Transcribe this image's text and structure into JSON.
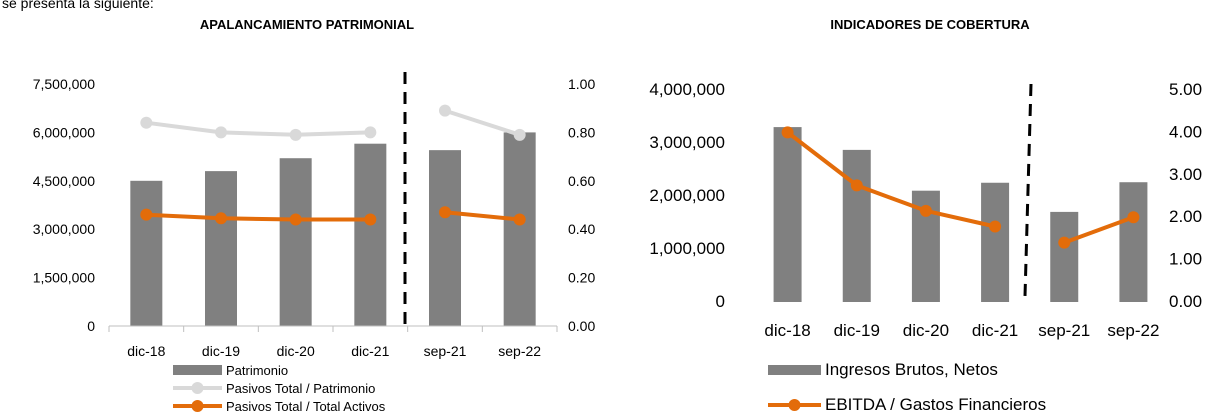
{
  "page_caption": "se presenta la siguiente:",
  "chart_data": [
    {
      "type": "bar",
      "title": "APALANCAMIENTO PATRIMONIAL",
      "categories": [
        "dic-18",
        "dic-19",
        "dic-20",
        "dic-21",
        "sep-21",
        "sep-22"
      ],
      "y_left": {
        "ticks": [
          "0",
          "1,500,000",
          "3,000,000",
          "4,500,000",
          "6,000,000",
          "7,500,000"
        ],
        "range": [
          0,
          7500000
        ]
      },
      "y_right": {
        "ticks": [
          "0.00",
          "0.20",
          "0.40",
          "0.60",
          "0.80",
          "1.00"
        ],
        "range": [
          0,
          1
        ]
      },
      "series": [
        {
          "name": "Patrimonio",
          "kind": "bar",
          "axis": "left",
          "color": "#808080",
          "values": [
            4500000,
            4800000,
            5200000,
            5650000,
            5450000,
            6000000
          ]
        },
        {
          "name": "Pasivos Total / Patrimonio",
          "kind": "line",
          "axis": "right",
          "color": "#d9d9d9",
          "values": [
            0.84,
            0.8,
            0.79,
            0.8,
            0.89,
            0.79
          ]
        },
        {
          "name": "Pasivos Total / Total Activos",
          "kind": "line",
          "axis": "right",
          "color": "#e36c0a",
          "values": [
            0.46,
            0.445,
            0.44,
            0.44,
            0.47,
            0.44
          ]
        }
      ],
      "segment_break_after": 3,
      "legend_position": "bottom",
      "grid": false
    },
    {
      "type": "bar",
      "title": "INDICADORES DE COBERTURA",
      "categories": [
        "dic-18",
        "dic-19",
        "dic-20",
        "dic-21",
        "sep-21",
        "sep-22"
      ],
      "y_left": {
        "ticks": [
          "0",
          "1,000,000",
          "2,000,000",
          "3,000,000",
          "4,000,000"
        ],
        "range": [
          0,
          4000000
        ]
      },
      "y_right": {
        "ticks": [
          "0.00",
          "1.00",
          "2.00",
          "3.00",
          "4.00",
          "5.00"
        ],
        "range": [
          0,
          5
        ]
      },
      "series": [
        {
          "name": "Ingresos Brutos, Netos",
          "kind": "bar",
          "axis": "left",
          "color": "#808080",
          "values": [
            3300000,
            2870000,
            2100000,
            2250000,
            1700000,
            2260000
          ]
        },
        {
          "name": "EBITDA / Gastos Financieros",
          "kind": "line",
          "axis": "right",
          "color": "#e36c0a",
          "values": [
            4.0,
            2.75,
            2.15,
            1.78,
            1.4,
            2.0
          ]
        }
      ],
      "segment_break_after": 3,
      "legend_position": "bottom",
      "grid": false
    }
  ]
}
